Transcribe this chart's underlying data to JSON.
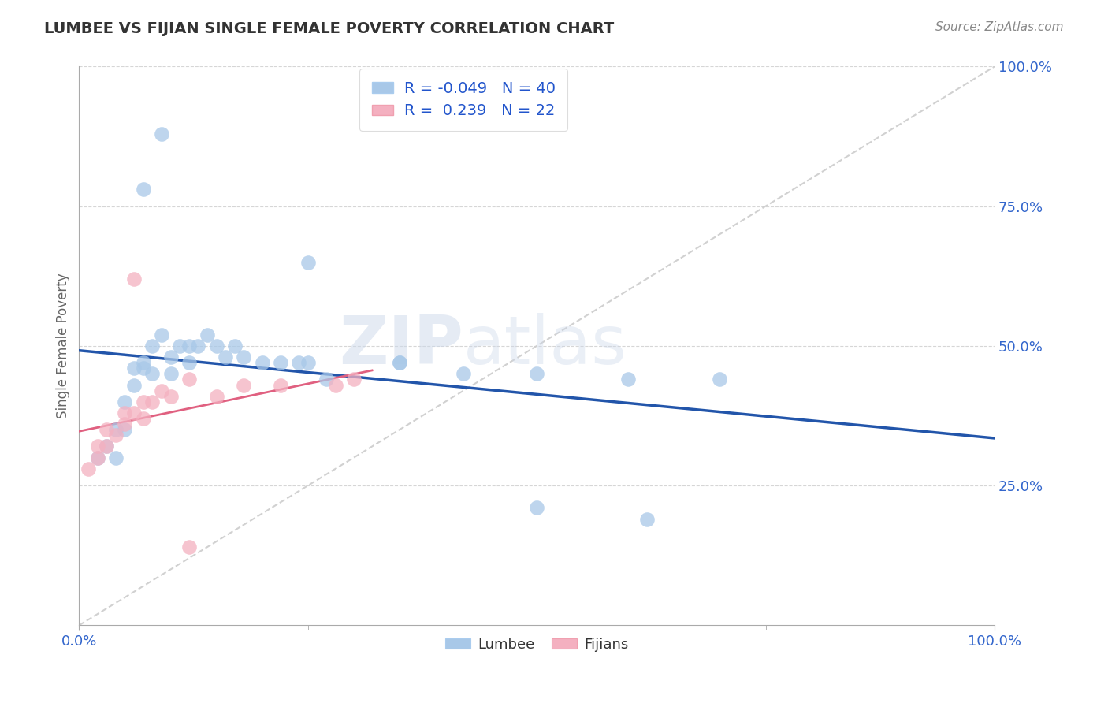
{
  "title": "LUMBEE VS FIJIAN SINGLE FEMALE POVERTY CORRELATION CHART",
  "source": "Source: ZipAtlas.com",
  "ylabel": "Single Female Poverty",
  "xlim": [
    0.0,
    1.0
  ],
  "ylim": [
    0.0,
    1.0
  ],
  "lumbee_R": -0.049,
  "lumbee_N": 40,
  "fijian_R": 0.239,
  "fijian_N": 22,
  "lumbee_color": "#a8c8e8",
  "fijian_color": "#f4b0c0",
  "lumbee_line_color": "#2255aa",
  "fijian_line_color": "#e06080",
  "diagonal_color": "#cccccc",
  "lumbee_x": [
    0.02,
    0.03,
    0.04,
    0.04,
    0.05,
    0.05,
    0.06,
    0.06,
    0.07,
    0.07,
    0.08,
    0.08,
    0.09,
    0.1,
    0.1,
    0.11,
    0.12,
    0.12,
    0.13,
    0.14,
    0.15,
    0.16,
    0.17,
    0.18,
    0.2,
    0.22,
    0.24,
    0.27,
    0.35,
    0.5,
    0.62,
    0.7,
    0.09,
    0.07,
    0.25,
    0.5,
    0.6,
    0.25,
    0.35,
    0.42
  ],
  "lumbee_y": [
    0.3,
    0.32,
    0.35,
    0.3,
    0.4,
    0.35,
    0.46,
    0.43,
    0.47,
    0.46,
    0.5,
    0.45,
    0.52,
    0.48,
    0.45,
    0.5,
    0.5,
    0.47,
    0.5,
    0.52,
    0.5,
    0.48,
    0.5,
    0.48,
    0.47,
    0.47,
    0.47,
    0.44,
    0.47,
    0.21,
    0.19,
    0.44,
    0.88,
    0.78,
    0.65,
    0.45,
    0.44,
    0.47,
    0.47,
    0.45
  ],
  "fijian_x": [
    0.01,
    0.02,
    0.02,
    0.03,
    0.03,
    0.04,
    0.05,
    0.05,
    0.06,
    0.07,
    0.07,
    0.08,
    0.09,
    0.1,
    0.12,
    0.15,
    0.18,
    0.22,
    0.06,
    0.12,
    0.28,
    0.3
  ],
  "fijian_y": [
    0.28,
    0.3,
    0.32,
    0.32,
    0.35,
    0.34,
    0.36,
    0.38,
    0.38,
    0.4,
    0.37,
    0.4,
    0.42,
    0.41,
    0.44,
    0.41,
    0.43,
    0.43,
    0.62,
    0.14,
    0.43,
    0.44
  ],
  "watermark_zip": "ZIP",
  "watermark_atlas": "atlas",
  "background_color": "#ffffff",
  "grid_color": "#cccccc",
  "title_color": "#333333",
  "source_color": "#888888",
  "tick_color": "#3366cc",
  "ylabel_color": "#666666"
}
